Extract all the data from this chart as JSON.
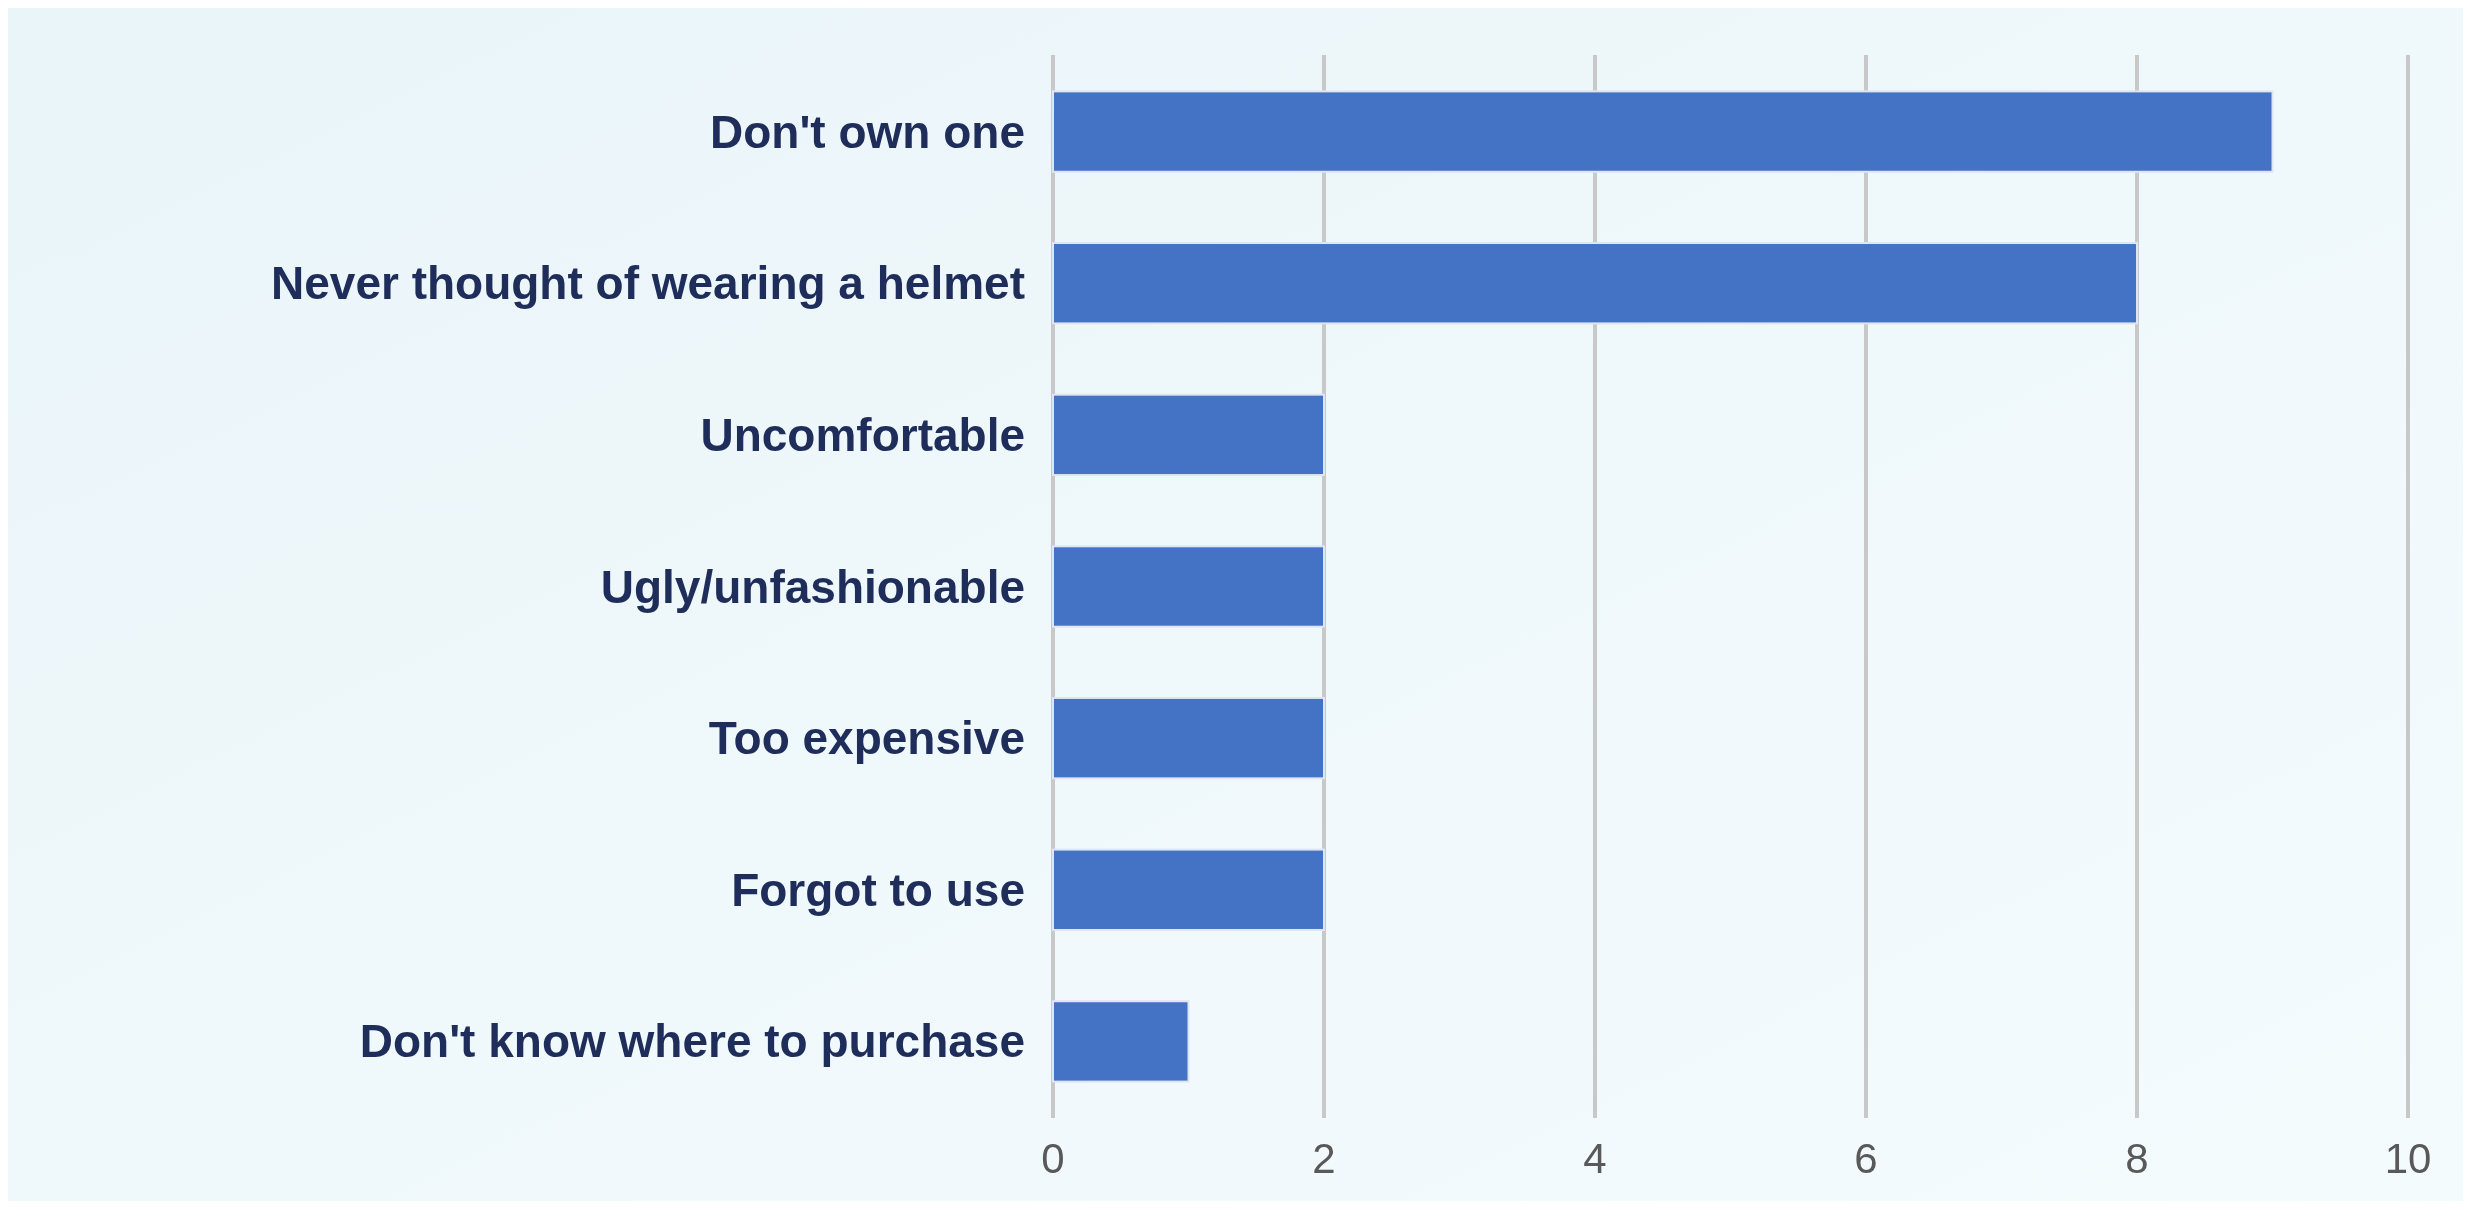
{
  "chart_data": {
    "type": "bar",
    "orientation": "horizontal",
    "categories": [
      "Don't own one",
      "Never thought of wearing a helmet",
      "Uncomfortable",
      "Ugly/unfashionable",
      "Too expensive",
      "Forgot to use",
      "Don't know where to purchase"
    ],
    "values": [
      9,
      8,
      2,
      2,
      2,
      2,
      1
    ],
    "color": "#4472c4",
    "xlim": [
      0,
      10
    ],
    "xticks": [
      0,
      2,
      4,
      6,
      8,
      10
    ],
    "grid": "x"
  }
}
